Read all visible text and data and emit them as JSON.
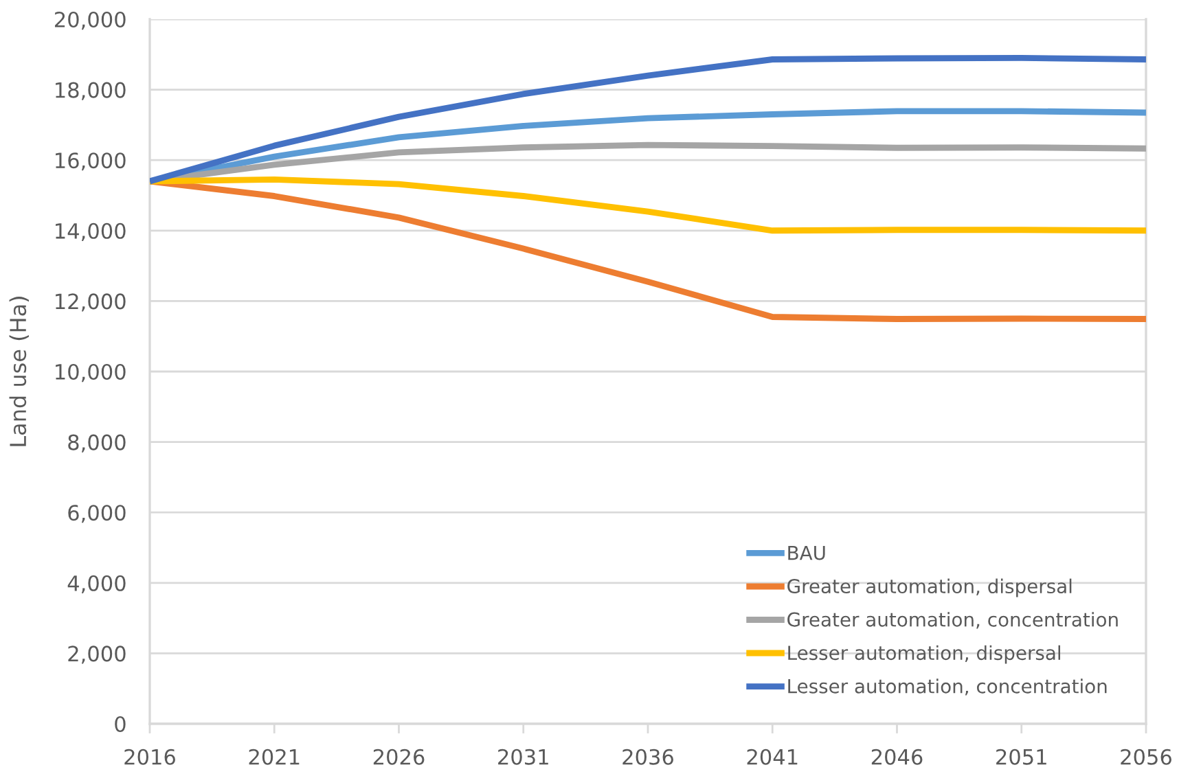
{
  "chart_data": {
    "type": "line",
    "ylabel": "Land use (Ha)",
    "x": [
      2016,
      2021,
      2026,
      2031,
      2036,
      2041,
      2046,
      2051,
      2056
    ],
    "series": [
      {
        "name": "BAU",
        "color": "#5b9bd5",
        "values": [
          15400,
          16100,
          16650,
          16970,
          17190,
          17300,
          17390,
          17390,
          17350
        ]
      },
      {
        "name": "Greater automation, dispersal",
        "color": "#ed7d31",
        "values": [
          15400,
          14980,
          14370,
          13490,
          12550,
          11550,
          11490,
          11500,
          11490
        ]
      },
      {
        "name": "Greater automation, concentration",
        "color": "#a5a5a5",
        "values": [
          15400,
          15870,
          16220,
          16360,
          16430,
          16400,
          16350,
          16360,
          16330
        ]
      },
      {
        "name": "Lesser automation, dispersal",
        "color": "#ffc000",
        "values": [
          15400,
          15450,
          15320,
          14980,
          14540,
          14000,
          14020,
          14020,
          14000
        ]
      },
      {
        "name": "Lesser automation, concentration",
        "color": "#4472c4",
        "values": [
          15400,
          16410,
          17230,
          17880,
          18400,
          18860,
          18890,
          18900,
          18860
        ]
      }
    ],
    "xlim": [
      2016,
      2056
    ],
    "xticks": [
      2016,
      2021,
      2026,
      2031,
      2036,
      2041,
      2046,
      2051,
      2056
    ],
    "ylim": [
      0,
      20000
    ],
    "yticks": [
      0,
      {
        "value": 2000,
        "label": "2,000"
      },
      {
        "value": 4000,
        "label": "4,000"
      },
      {
        "value": 6000,
        "label": "6,000"
      },
      {
        "value": 8000,
        "label": "8,000"
      },
      {
        "value": 10000,
        "label": "10,000"
      },
      {
        "value": 12000,
        "label": "12,000"
      },
      {
        "value": 14000,
        "label": "14,000"
      },
      {
        "value": 16000,
        "label": "16,000"
      },
      {
        "value": 18000,
        "label": "18,000"
      },
      {
        "value": 20000,
        "label": "20,000"
      }
    ],
    "grid": "y",
    "legend": "bottom right",
    "marker": "none",
    "line_style": "solid"
  }
}
